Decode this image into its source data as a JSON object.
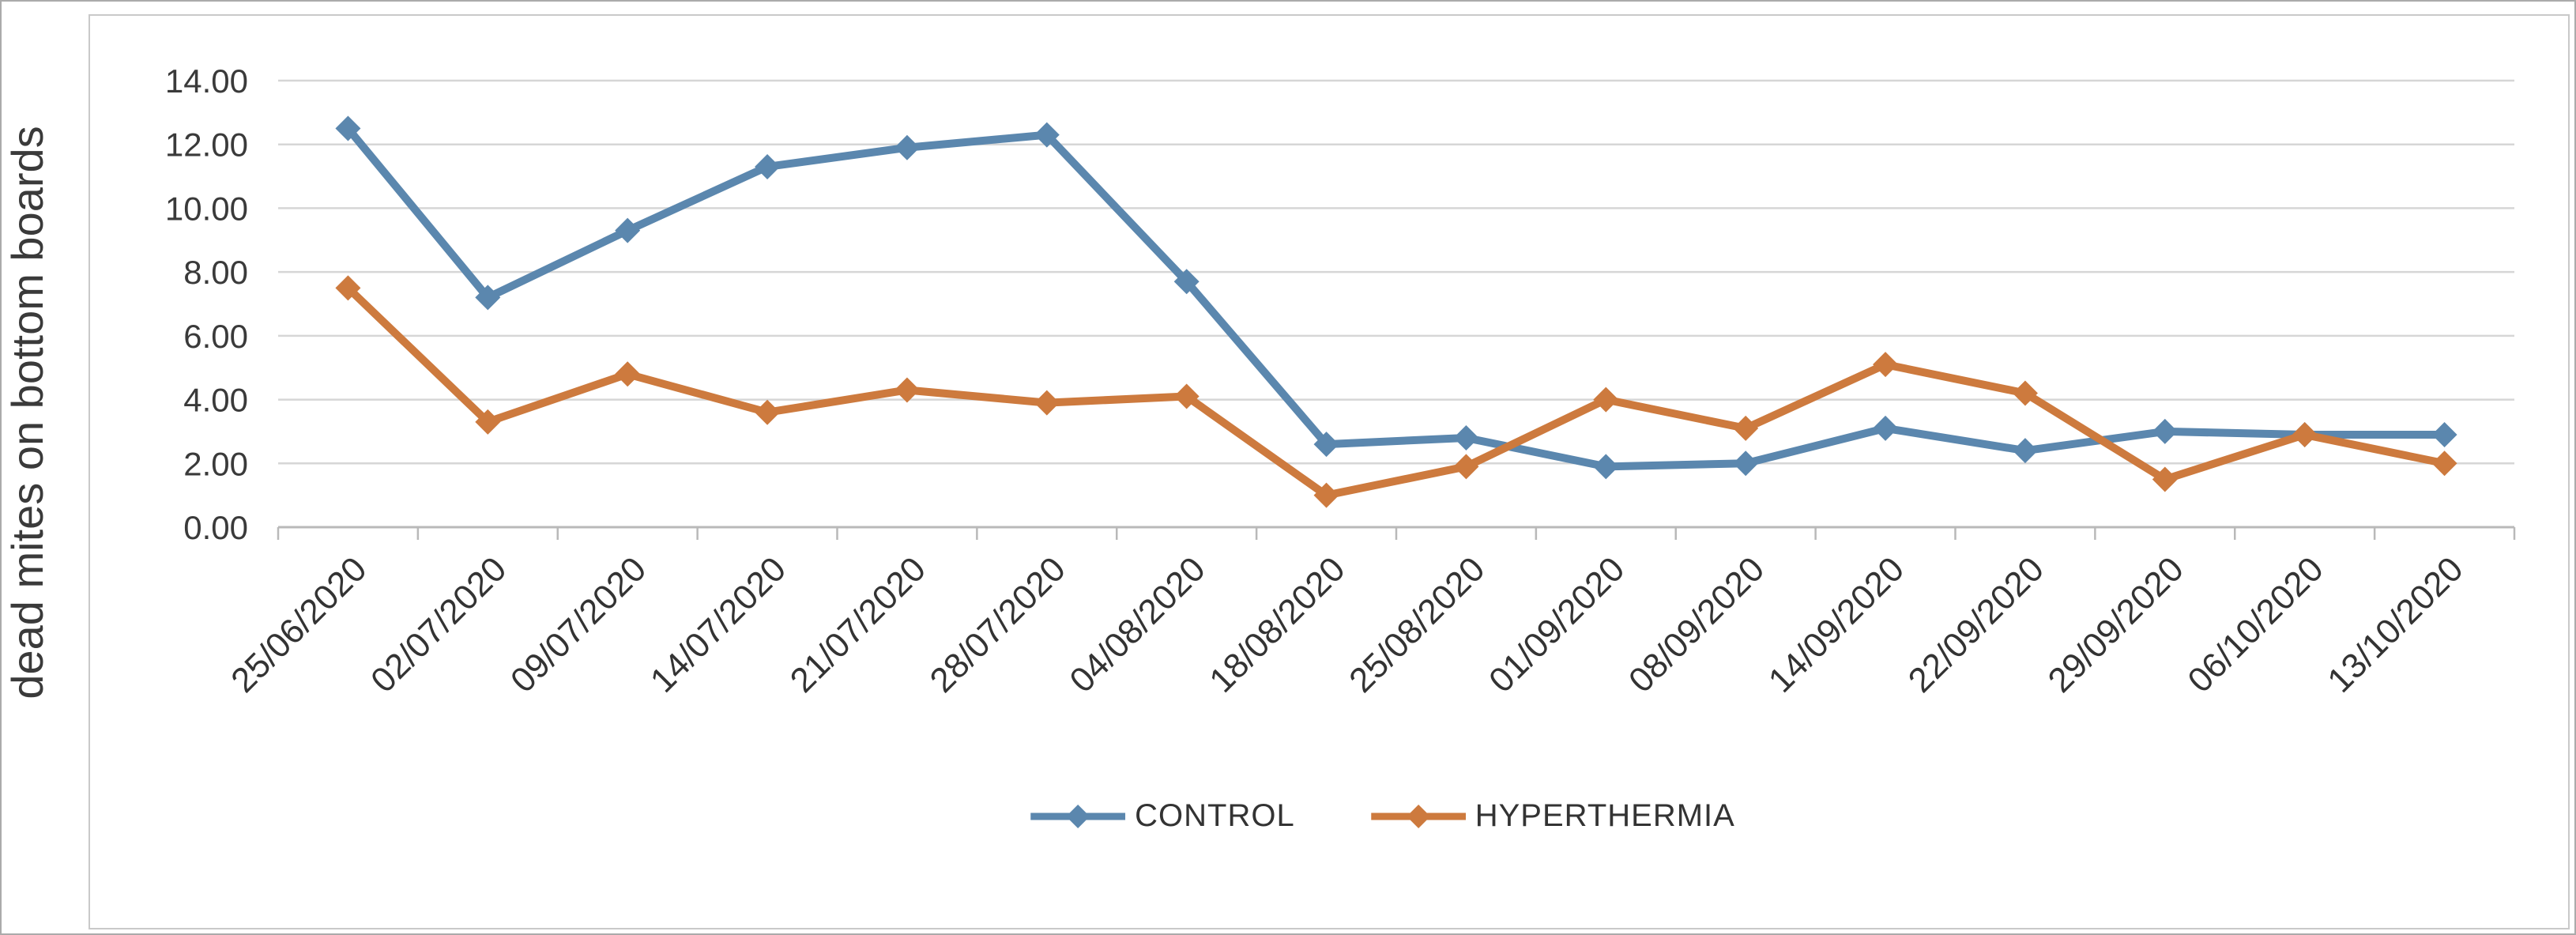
{
  "figure": {
    "background": "#ffffff",
    "frame_border_color": "#c9c9c9",
    "outer_border_color": "#ababab"
  },
  "chart_data": {
    "type": "line",
    "title": "",
    "xlabel": "",
    "ylabel": "dead mites on bottom boards",
    "ylim": [
      0,
      14
    ],
    "ytick_step": 2,
    "yticks": [
      "0.00",
      "2.00",
      "4.00",
      "6.00",
      "8.00",
      "10.00",
      "12.00",
      "14.00"
    ],
    "grid": true,
    "marker": "diamond",
    "xtick_rotation": 45,
    "legend_position": "bottom",
    "categories": [
      "25/06/2020",
      "02/07/2020",
      "09/07/2020",
      "14/07/2020",
      "21/07/2020",
      "28/07/2020",
      "04/08/2020",
      "18/08/2020",
      "25/08/2020",
      "01/09/2020",
      "08/09/2020",
      "14/09/2020",
      "22/09/2020",
      "29/09/2020",
      "06/10/2020",
      "13/10/2020"
    ],
    "series": [
      {
        "name": "CONTROL",
        "color": "#5b87ae",
        "values": [
          12.5,
          7.2,
          9.3,
          11.3,
          11.9,
          12.3,
          7.7,
          2.6,
          2.8,
          1.9,
          2.0,
          3.1,
          2.4,
          3.0,
          2.9,
          2.9
        ]
      },
      {
        "name": "HYPERTHERMIA",
        "color": "#cd7a3e",
        "values": [
          7.5,
          3.3,
          4.8,
          3.6,
          4.3,
          3.9,
          4.1,
          1.0,
          1.9,
          4.0,
          3.1,
          5.1,
          4.2,
          1.5,
          2.9,
          2.0
        ]
      }
    ],
    "axis_color": "#b9b9b9",
    "gridline_color": "#d6d6d6",
    "tick_label_color": "#3a3a3a"
  }
}
